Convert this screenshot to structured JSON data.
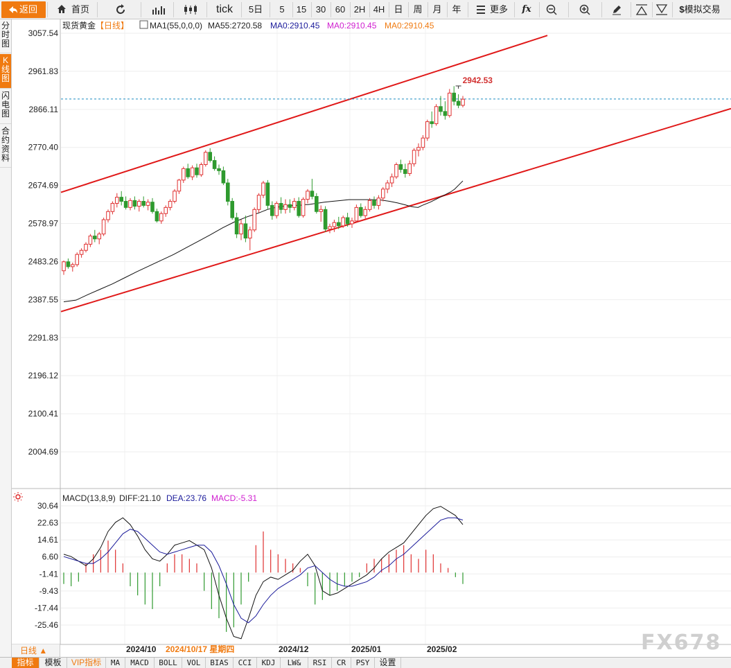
{
  "toolbar": {
    "back": "返回",
    "home": "首页",
    "tick": "tick",
    "periods": [
      "5日",
      "5",
      "15",
      "30",
      "60",
      "2H",
      "4H",
      "日",
      "周",
      "月",
      "年"
    ],
    "more": "更多",
    "fx": "fx",
    "trade": "模拟交易"
  },
  "sidebar": [
    {
      "label": "分时图",
      "active": false
    },
    {
      "label": "K线图",
      "active": true
    },
    {
      "label": "闪电图",
      "active": false
    },
    {
      "label": "合约资料",
      "active": false
    }
  ],
  "header": {
    "name": "现货黄金",
    "period_tag": "【日线】",
    "ma1": "MA1(55,0,0,0)",
    "ma55": "MA55:2720.58",
    "ma0a": "MA0:2910.45",
    "ma0b": "MA0:2910.45",
    "ma0c": "MA0:2910.45"
  },
  "macd_header": {
    "name": "MACD(13,8,9)",
    "diff": "DIFF:21.10",
    "dea": "DEA:23.76",
    "macd": "MACD:-5.31"
  },
  "price_axis": [
    "3057.54",
    "2961.83",
    "2866.11",
    "2770.40",
    "2674.69",
    "2578.97",
    "2483.26",
    "2387.55",
    "2291.83",
    "2196.12",
    "2100.41",
    "2004.69"
  ],
  "macd_axis": [
    "30.64",
    "22.63",
    "14.61",
    "6.60",
    "-1.41",
    "-9.43",
    "-17.44",
    "-25.46"
  ],
  "x_axis": [
    "2024/10",
    "2024/10/17 星期四",
    "2024/12",
    "2025/01",
    "2025/02"
  ],
  "high_label": "2942.53",
  "period_selector": "日线 ▲",
  "bottom_tabs": [
    "指标",
    "模板",
    "VIP指标",
    "MA",
    "MACD",
    "BOLL",
    "VOL",
    "BIAS",
    "CCI",
    "KDJ",
    "LW&",
    "RSI",
    "CR",
    "PSY",
    "设置"
  ],
  "watermark": "FX678",
  "colors": {
    "up": "#e03030",
    "down": "#2e9a2e",
    "accent": "#f07a10",
    "ma": "#111111",
    "dea": "#1a1a9a",
    "macd": "#d020d0",
    "channel": "#e01818",
    "dashed": "#1a8ac0"
  },
  "chart_data": {
    "type": "candlestick",
    "title": "现货黄金【日线】",
    "y_range": [
      1956.84,
      3105.39
    ],
    "macd_range": [
      -31.5,
      35.3
    ],
    "candles_ohlc": [
      [
        2490,
        2515,
        2480,
        2512
      ],
      [
        2512,
        2520,
        2495,
        2500
      ],
      [
        2500,
        2510,
        2488,
        2505
      ],
      [
        2505,
        2535,
        2500,
        2530
      ],
      [
        2530,
        2545,
        2522,
        2540
      ],
      [
        2540,
        2560,
        2535,
        2555
      ],
      [
        2555,
        2580,
        2548,
        2575
      ],
      [
        2575,
        2590,
        2560,
        2568
      ],
      [
        2568,
        2585,
        2555,
        2580
      ],
      [
        2580,
        2620,
        2575,
        2615
      ],
      [
        2615,
        2640,
        2608,
        2635
      ],
      [
        2635,
        2660,
        2628,
        2655
      ],
      [
        2655,
        2680,
        2645,
        2670
      ],
      [
        2670,
        2685,
        2650,
        2660
      ],
      [
        2660,
        2672,
        2640,
        2645
      ],
      [
        2645,
        2668,
        2638,
        2662
      ],
      [
        2662,
        2672,
        2640,
        2648
      ],
      [
        2648,
        2665,
        2635,
        2660
      ],
      [
        2660,
        2672,
        2645,
        2650
      ],
      [
        2650,
        2665,
        2638,
        2658
      ],
      [
        2658,
        2668,
        2630,
        2635
      ],
      [
        2635,
        2642,
        2608,
        2612
      ],
      [
        2612,
        2635,
        2605,
        2630
      ],
      [
        2630,
        2650,
        2622,
        2645
      ],
      [
        2645,
        2665,
        2638,
        2660
      ],
      [
        2660,
        2690,
        2655,
        2685
      ],
      [
        2685,
        2715,
        2678,
        2712
      ],
      [
        2712,
        2745,
        2705,
        2740
      ],
      [
        2740,
        2752,
        2715,
        2720
      ],
      [
        2720,
        2748,
        2712,
        2742
      ],
      [
        2742,
        2752,
        2718,
        2725
      ],
      [
        2725,
        2755,
        2720,
        2750
      ],
      [
        2750,
        2785,
        2745,
        2780
      ],
      [
        2780,
        2790,
        2755,
        2760
      ],
      [
        2760,
        2770,
        2735,
        2740
      ],
      [
        2740,
        2750,
        2725,
        2735
      ],
      [
        2735,
        2745,
        2700,
        2705
      ],
      [
        2705,
        2715,
        2650,
        2660
      ],
      [
        2660,
        2668,
        2615,
        2620
      ],
      [
        2620,
        2632,
        2570,
        2580
      ],
      [
        2580,
        2615,
        2565,
        2605
      ],
      [
        2605,
        2625,
        2560,
        2570
      ],
      [
        2570,
        2598,
        2540,
        2590
      ],
      [
        2590,
        2645,
        2585,
        2640
      ],
      [
        2640,
        2680,
        2632,
        2675
      ],
      [
        2675,
        2710,
        2668,
        2705
      ],
      [
        2705,
        2712,
        2640,
        2650
      ],
      [
        2650,
        2660,
        2615,
        2625
      ],
      [
        2625,
        2660,
        2618,
        2655
      ],
      [
        2655,
        2670,
        2630,
        2640
      ],
      [
        2640,
        2665,
        2630,
        2652
      ],
      [
        2652,
        2665,
        2632,
        2645
      ],
      [
        2645,
        2668,
        2638,
        2660
      ],
      [
        2660,
        2670,
        2620,
        2625
      ],
      [
        2625,
        2670,
        2620,
        2665
      ],
      [
        2665,
        2690,
        2655,
        2685
      ],
      [
        2685,
        2715,
        2665,
        2672
      ],
      [
        2672,
        2680,
        2630,
        2635
      ],
      [
        2635,
        2650,
        2610,
        2640
      ],
      [
        2640,
        2648,
        2585,
        2592
      ],
      [
        2592,
        2605,
        2582,
        2598
      ],
      [
        2598,
        2615,
        2585,
        2608
      ],
      [
        2608,
        2622,
        2592,
        2600
      ],
      [
        2600,
        2625,
        2595,
        2620
      ],
      [
        2620,
        2632,
        2598,
        2605
      ],
      [
        2605,
        2620,
        2595,
        2612
      ],
      [
        2612,
        2652,
        2608,
        2645
      ],
      [
        2645,
        2655,
        2620,
        2625
      ],
      [
        2625,
        2648,
        2618,
        2640
      ],
      [
        2640,
        2668,
        2635,
        2662
      ],
      [
        2662,
        2672,
        2642,
        2650
      ],
      [
        2650,
        2675,
        2640,
        2668
      ],
      [
        2668,
        2695,
        2660,
        2690
      ],
      [
        2690,
        2712,
        2680,
        2705
      ],
      [
        2705,
        2728,
        2695,
        2720
      ],
      [
        2720,
        2755,
        2715,
        2750
      ],
      [
        2750,
        2762,
        2730,
        2738
      ],
      [
        2738,
        2752,
        2718,
        2728
      ],
      [
        2728,
        2760,
        2722,
        2752
      ],
      [
        2752,
        2790,
        2745,
        2785
      ],
      [
        2785,
        2802,
        2770,
        2792
      ],
      [
        2792,
        2822,
        2785,
        2815
      ],
      [
        2815,
        2860,
        2808,
        2855
      ],
      [
        2855,
        2880,
        2840,
        2850
      ],
      [
        2850,
        2898,
        2845,
        2892
      ],
      [
        2892,
        2918,
        2870,
        2880
      ],
      [
        2880,
        2905,
        2860,
        2870
      ],
      [
        2870,
        2935,
        2865,
        2925
      ],
      [
        2925,
        2942,
        2895,
        2905
      ],
      [
        2905,
        2922,
        2888,
        2895
      ],
      [
        2895,
        2918,
        2890,
        2910
      ]
    ],
    "ma55": [
      [
        0,
        2414
      ],
      [
        6,
        2418
      ],
      [
        12,
        2432
      ],
      [
        18,
        2445
      ],
      [
        24,
        2458
      ],
      [
        30,
        2473
      ],
      [
        36,
        2488
      ],
      [
        42,
        2502
      ],
      [
        48,
        2516
      ],
      [
        54,
        2530
      ],
      [
        60,
        2546
      ],
      [
        66,
        2562
      ],
      [
        72,
        2578
      ],
      [
        78,
        2595
      ],
      [
        84,
        2610
      ],
      [
        90,
        2622
      ],
      [
        96,
        2632
      ],
      [
        100,
        2640
      ],
      [
        104,
        2645
      ],
      [
        108,
        2648
      ],
      [
        112,
        2650
      ],
      [
        116,
        2650
      ],
      [
        118,
        2652
      ],
      [
        120,
        2652
      ],
      [
        124,
        2655
      ],
      [
        128,
        2658
      ],
      [
        132,
        2660
      ],
      [
        136,
        2662
      ],
      [
        140,
        2664
      ],
      [
        144,
        2664
      ],
      [
        148,
        2664
      ],
      [
        152,
        2664
      ],
      [
        156,
        2663
      ],
      [
        160,
        2660
      ],
      [
        164,
        2656
      ],
      [
        168,
        2651
      ],
      [
        170,
        2648
      ],
      [
        172,
        2646
      ],
      [
        174,
        2645
      ],
      [
        176,
        2650
      ],
      [
        180,
        2658
      ],
      [
        184,
        2668
      ],
      [
        188,
        2678
      ],
      [
        190,
        2683
      ],
      [
        192,
        2690
      ],
      [
        194,
        2700
      ],
      [
        196,
        2710
      ]
    ],
    "ma_scale_days": 196,
    "upper_channel": [
      [
        2680,
        3066
      ],
      [
        2680,
        3069
      ]
    ],
    "channel_lines": [
      {
        "name": "upper",
        "from": [
          0,
          2682
        ],
        "to": [
          1,
          3068
        ]
      },
      {
        "name": "lower",
        "from": [
          0,
          2390
        ],
        "to": [
          1,
          2887
        ]
      }
    ],
    "high_marker": 2942.53,
    "dashed_level": 2910.45,
    "macd_diff": [
      8,
      7,
      5,
      3,
      6,
      11,
      18,
      22,
      24,
      21,
      16,
      10,
      6,
      5,
      8,
      12,
      13,
      14,
      12,
      10,
      2,
      -10,
      -20,
      -28,
      -29,
      -20,
      -10,
      -4,
      -2,
      -3,
      -1,
      1,
      5,
      8,
      3,
      -8,
      -10,
      -9,
      -7,
      -5,
      -3,
      -1,
      2,
      6,
      9,
      11,
      13,
      17,
      21,
      25,
      28,
      29,
      27,
      25,
      21
    ],
    "macd_dea": [
      7,
      6,
      5,
      4,
      4,
      6,
      9,
      13,
      17,
      19,
      18,
      15,
      12,
      9,
      8,
      9,
      10,
      11,
      12,
      12,
      9,
      3,
      -5,
      -14,
      -20,
      -22,
      -19,
      -14,
      -10,
      -7,
      -5,
      -3,
      -1,
      2,
      3,
      0,
      -3,
      -5,
      -6,
      -6,
      -5,
      -4,
      -2,
      1,
      3,
      6,
      8,
      11,
      14,
      17,
      20,
      23,
      24,
      24,
      23
    ],
    "macd_hist": [
      -5,
      -6,
      -4,
      4,
      8,
      10,
      14,
      10,
      4,
      -6,
      -10,
      -14,
      -16,
      -6,
      4,
      8,
      8,
      6,
      4,
      -8,
      -16,
      -20,
      -26,
      -24,
      -14,
      -4,
      12,
      18,
      10,
      8,
      6,
      4,
      2,
      -6,
      -14,
      -12,
      -10,
      -8,
      -6,
      -4,
      -2,
      4,
      6,
      6,
      8,
      10,
      12,
      8,
      6,
      10,
      8,
      4,
      2,
      -2,
      -5
    ]
  }
}
